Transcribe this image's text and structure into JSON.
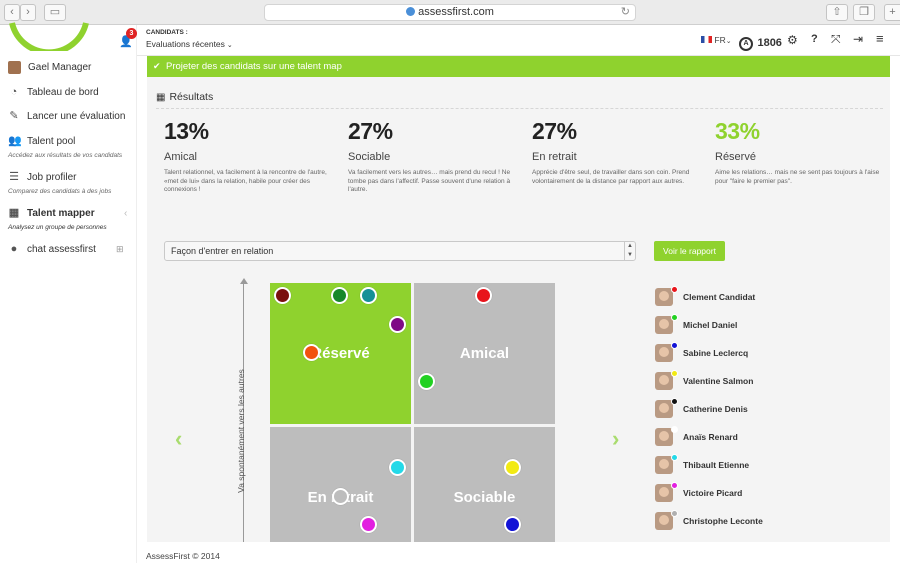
{
  "browser": {
    "url": "assessfirst.com"
  },
  "sidebar": {
    "user_name": "Gael Manager",
    "items": [
      {
        "label": "Tableau de bord"
      },
      {
        "label": "Lancer une évaluation"
      },
      {
        "label": "Talent pool",
        "sub": "Accédez aux résultats de vos candidats"
      },
      {
        "label": "Job profiler",
        "sub": "Comparez des candidats à des jobs"
      },
      {
        "label": "Talent mapper",
        "sub": "Analysez un groupe de personnes"
      },
      {
        "label": "chat assessfirst"
      }
    ]
  },
  "header": {
    "notif_count": "3",
    "section_label": "CANDIDATS :",
    "section_value": "Evaluations récentes",
    "lang": "FR",
    "credits": "1806"
  },
  "banner": {
    "label": "Projeter des candidats sur une talent map"
  },
  "results": {
    "title": "Résultats",
    "stats": [
      {
        "pct": "13%",
        "label": "Amical",
        "desc": "Talent relationnel, va facilement à la rencontre de l'autre, «met de lui» dans la relation, habile pour créer des connexions !"
      },
      {
        "pct": "27%",
        "label": "Sociable",
        "desc": "Va facilement vers les autres… mais prend du recul ! Ne tombe pas dans l'affectif. Passe souvent d'une relation à l'autre."
      },
      {
        "pct": "27%",
        "label": "En retrait",
        "desc": "Apprécie d'être seul, de travailler dans son coin. Prend volontairement de la distance par rapport aux autres."
      },
      {
        "pct": "33%",
        "label": "Réservé",
        "desc": "Aime les relations… mais ne se sent pas toujours à l'aise pour \"faire le premier pas\"."
      }
    ]
  },
  "map": {
    "select_value": "Façon d'entrer en relation",
    "report_button": "Voir le rapport",
    "y_axis_label": "Va spontanément vers les autres",
    "quadrants": [
      "Réservé",
      "Amical",
      "En retrait",
      "Sociable"
    ],
    "colors": {
      "accent": "#8fd22e",
      "quad_active": "#8fd22e",
      "quad": "#bdbdbd"
    }
  },
  "people": [
    {
      "name": "Clement Candidat",
      "color": "#e8141b"
    },
    {
      "name": "Michel Daniel",
      "color": "#22d122"
    },
    {
      "name": "Sabine Leclercq",
      "color": "#1212d6"
    },
    {
      "name": "Valentine Salmon",
      "color": "#f2ea13"
    },
    {
      "name": "Catherine Denis",
      "color": "#111111"
    },
    {
      "name": "Anaïs Renard",
      "color": "#ffffff"
    },
    {
      "name": "Thibault Etienne",
      "color": "#24d9e8"
    },
    {
      "name": "Victoire Picard",
      "color": "#e21fe0"
    },
    {
      "name": "Christophe Leconte",
      "color": "#b0b0b0"
    }
  ],
  "footer": {
    "copyright": "AssessFirst © 2014"
  }
}
